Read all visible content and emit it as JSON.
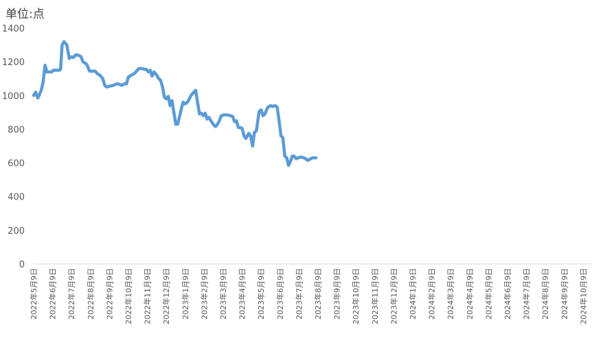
{
  "chart_data": {
    "type": "line",
    "unit_label": "单位:点",
    "ylim": [
      0,
      1400
    ],
    "yticks": [
      0,
      200,
      400,
      600,
      800,
      1000,
      1200,
      1400
    ],
    "grid": false,
    "line_color": "#5B9BD5",
    "x_categories": [
      "2022年5月9日",
      "2022年6月9日",
      "2022年7月9日",
      "2022年8月9日",
      "2022年9月9日",
      "2022年10月9日",
      "2022年11月9日",
      "2022年12月9日",
      "2023年1月9日",
      "2023年2月9日",
      "2023年3月9日",
      "2023年4月9日",
      "2023年5月9日",
      "2023年6月9日",
      "2023年7月9日",
      "2023年8月9日",
      "2023年9月9日",
      "2023年10月9日",
      "2023年11月9日",
      "2023年12月9日",
      "2024年1月9日",
      "2024年2月9日",
      "2024年3月9日",
      "2024年4月9日",
      "2024年5月9日",
      "2024年6月9日",
      "2024年7月9日",
      "2024年8月9日",
      "2024年9月9日",
      "2024年10月9日"
    ],
    "series": [
      {
        "values": [
          [
            0,
            1000
          ],
          [
            0.1,
            1020
          ],
          [
            0.22,
            985
          ],
          [
            0.4,
            1030
          ],
          [
            0.5,
            1080
          ],
          [
            0.6,
            1180
          ],
          [
            0.7,
            1140
          ],
          [
            0.85,
            1140
          ],
          [
            0.95,
            1140
          ],
          [
            1.05,
            1150
          ],
          [
            1.2,
            1150
          ],
          [
            1.35,
            1150
          ],
          [
            1.42,
            1155
          ],
          [
            1.5,
            1300
          ],
          [
            1.6,
            1320
          ],
          [
            1.75,
            1300
          ],
          [
            1.88,
            1220
          ],
          [
            2.0,
            1230
          ],
          [
            2.1,
            1225
          ],
          [
            2.2,
            1240
          ],
          [
            2.35,
            1240
          ],
          [
            2.5,
            1230
          ],
          [
            2.6,
            1200
          ],
          [
            2.8,
            1185
          ],
          [
            2.95,
            1145
          ],
          [
            3.1,
            1145
          ],
          [
            3.25,
            1145
          ],
          [
            3.35,
            1130
          ],
          [
            3.5,
            1120
          ],
          [
            3.65,
            1100
          ],
          [
            3.75,
            1060
          ],
          [
            3.85,
            1050
          ],
          [
            4.0,
            1055
          ],
          [
            4.2,
            1060
          ],
          [
            4.4,
            1070
          ],
          [
            4.55,
            1065
          ],
          [
            4.65,
            1060
          ],
          [
            4.8,
            1070
          ],
          [
            4.9,
            1070
          ],
          [
            5.0,
            1110
          ],
          [
            5.15,
            1120
          ],
          [
            5.3,
            1130
          ],
          [
            5.4,
            1140
          ],
          [
            5.55,
            1160
          ],
          [
            5.7,
            1160
          ],
          [
            5.85,
            1155
          ],
          [
            5.95,
            1155
          ],
          [
            6.05,
            1140
          ],
          [
            6.15,
            1150
          ],
          [
            6.25,
            1115
          ],
          [
            6.35,
            1140
          ],
          [
            6.5,
            1120
          ],
          [
            6.6,
            1100
          ],
          [
            6.7,
            1090
          ],
          [
            6.8,
            1050
          ],
          [
            6.9,
            990
          ],
          [
            7.0,
            980
          ],
          [
            7.1,
            995
          ],
          [
            7.2,
            940
          ],
          [
            7.3,
            970
          ],
          [
            7.4,
            900
          ],
          [
            7.5,
            830
          ],
          [
            7.6,
            830
          ],
          [
            7.75,
            900
          ],
          [
            7.88,
            960
          ],
          [
            8.0,
            950
          ],
          [
            8.15,
            965
          ],
          [
            8.3,
            1000
          ],
          [
            8.45,
            1020
          ],
          [
            8.55,
            1030
          ],
          [
            8.65,
            960
          ],
          [
            8.75,
            890
          ],
          [
            8.85,
            895
          ],
          [
            8.95,
            880
          ],
          [
            9.05,
            895
          ],
          [
            9.15,
            860
          ],
          [
            9.25,
            870
          ],
          [
            9.35,
            850
          ],
          [
            9.5,
            825
          ],
          [
            9.6,
            815
          ],
          [
            9.7,
            830
          ],
          [
            9.8,
            850
          ],
          [
            9.9,
            880
          ],
          [
            10.05,
            885
          ],
          [
            10.2,
            885
          ],
          [
            10.4,
            880
          ],
          [
            10.5,
            875
          ],
          [
            10.6,
            845
          ],
          [
            10.7,
            850
          ],
          [
            10.8,
            810
          ],
          [
            10.9,
            810
          ],
          [
            11.0,
            805
          ],
          [
            11.1,
            760
          ],
          [
            11.2,
            745
          ],
          [
            11.35,
            775
          ],
          [
            11.45,
            760
          ],
          [
            11.55,
            700
          ],
          [
            11.65,
            780
          ],
          [
            11.75,
            790
          ],
          [
            11.9,
            905
          ],
          [
            12.0,
            915
          ],
          [
            12.1,
            880
          ],
          [
            12.2,
            890
          ],
          [
            12.35,
            930
          ],
          [
            12.5,
            940
          ],
          [
            12.6,
            935
          ],
          [
            12.75,
            940
          ],
          [
            12.85,
            930
          ],
          [
            12.95,
            850
          ],
          [
            13.05,
            760
          ],
          [
            13.15,
            750
          ],
          [
            13.25,
            640
          ],
          [
            13.35,
            630
          ],
          [
            13.45,
            585
          ],
          [
            13.55,
            610
          ],
          [
            13.65,
            640
          ],
          [
            13.75,
            640
          ],
          [
            13.85,
            625
          ],
          [
            13.95,
            630
          ],
          [
            14.1,
            635
          ],
          [
            14.25,
            630
          ],
          [
            14.35,
            625
          ],
          [
            14.45,
            615
          ],
          [
            14.55,
            620
          ],
          [
            14.7,
            630
          ],
          [
            14.8,
            630
          ],
          [
            14.9,
            630
          ]
        ]
      }
    ]
  }
}
